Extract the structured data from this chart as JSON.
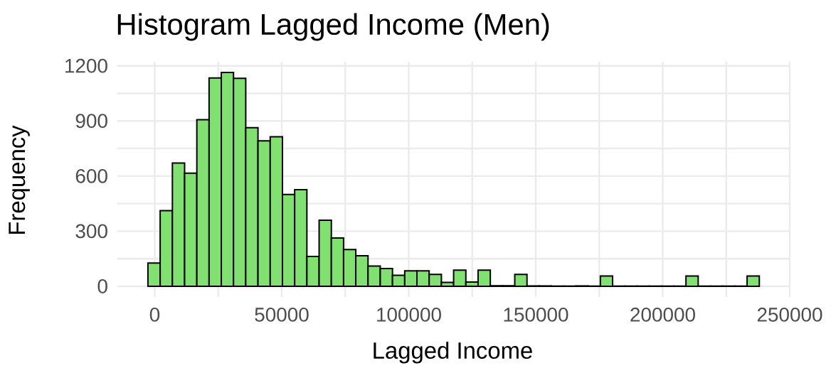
{
  "chart_data": {
    "type": "histogram",
    "title": "Histogram Lagged Income (Men)",
    "xlabel": "Lagged Income",
    "ylabel": "Frequency",
    "bins": [
      -2677,
      2137,
      6951,
      11765,
      16579,
      21393,
      26207,
      31021,
      35835,
      40649,
      45463,
      50277,
      55091,
      59905,
      64719,
      69533,
      74347,
      79161,
      83975,
      88789,
      93603,
      98417,
      103231,
      108045,
      112859,
      117673,
      122487,
      127301,
      132115,
      136929,
      141743,
      146557,
      151371,
      156185,
      160999,
      165813,
      170627,
      175441,
      180255,
      185069,
      189883,
      194697,
      199511,
      204325,
      209139,
      213953,
      218767,
      223581,
      228395,
      233209,
      238023
    ],
    "values": [
      127,
      412,
      671,
      616,
      907,
      1134,
      1164,
      1132,
      863,
      792,
      814,
      500,
      526,
      162,
      360,
      263,
      200,
      166,
      110,
      97,
      60,
      84,
      84,
      65,
      21,
      88,
      23,
      88,
      3,
      3,
      65,
      2,
      2,
      1,
      1,
      2,
      1,
      56,
      1,
      1,
      1,
      1,
      1,
      1,
      56,
      1,
      1,
      1,
      1,
      56
    ],
    "color": "#80e070",
    "xlim": [
      -14700,
      250000
    ],
    "ylim": [
      -58,
      1222
    ],
    "xticks": [
      0,
      {
        "value": 25000,
        "label": null
      },
      50000,
      {
        "value": 75000,
        "label": null
      },
      100000,
      {
        "value": 125000,
        "label": null
      },
      150000,
      {
        "value": 175000,
        "label": null
      },
      200000,
      {
        "value": 225000,
        "label": null
      },
      250000
    ],
    "yticks": [
      0,
      {
        "value": 150,
        "label": null
      },
      300,
      {
        "value": 450,
        "label": null
      },
      600,
      {
        "value": 750,
        "label": null
      },
      900,
      {
        "value": 1050,
        "label": null
      },
      1200
    ],
    "grid": true
  }
}
